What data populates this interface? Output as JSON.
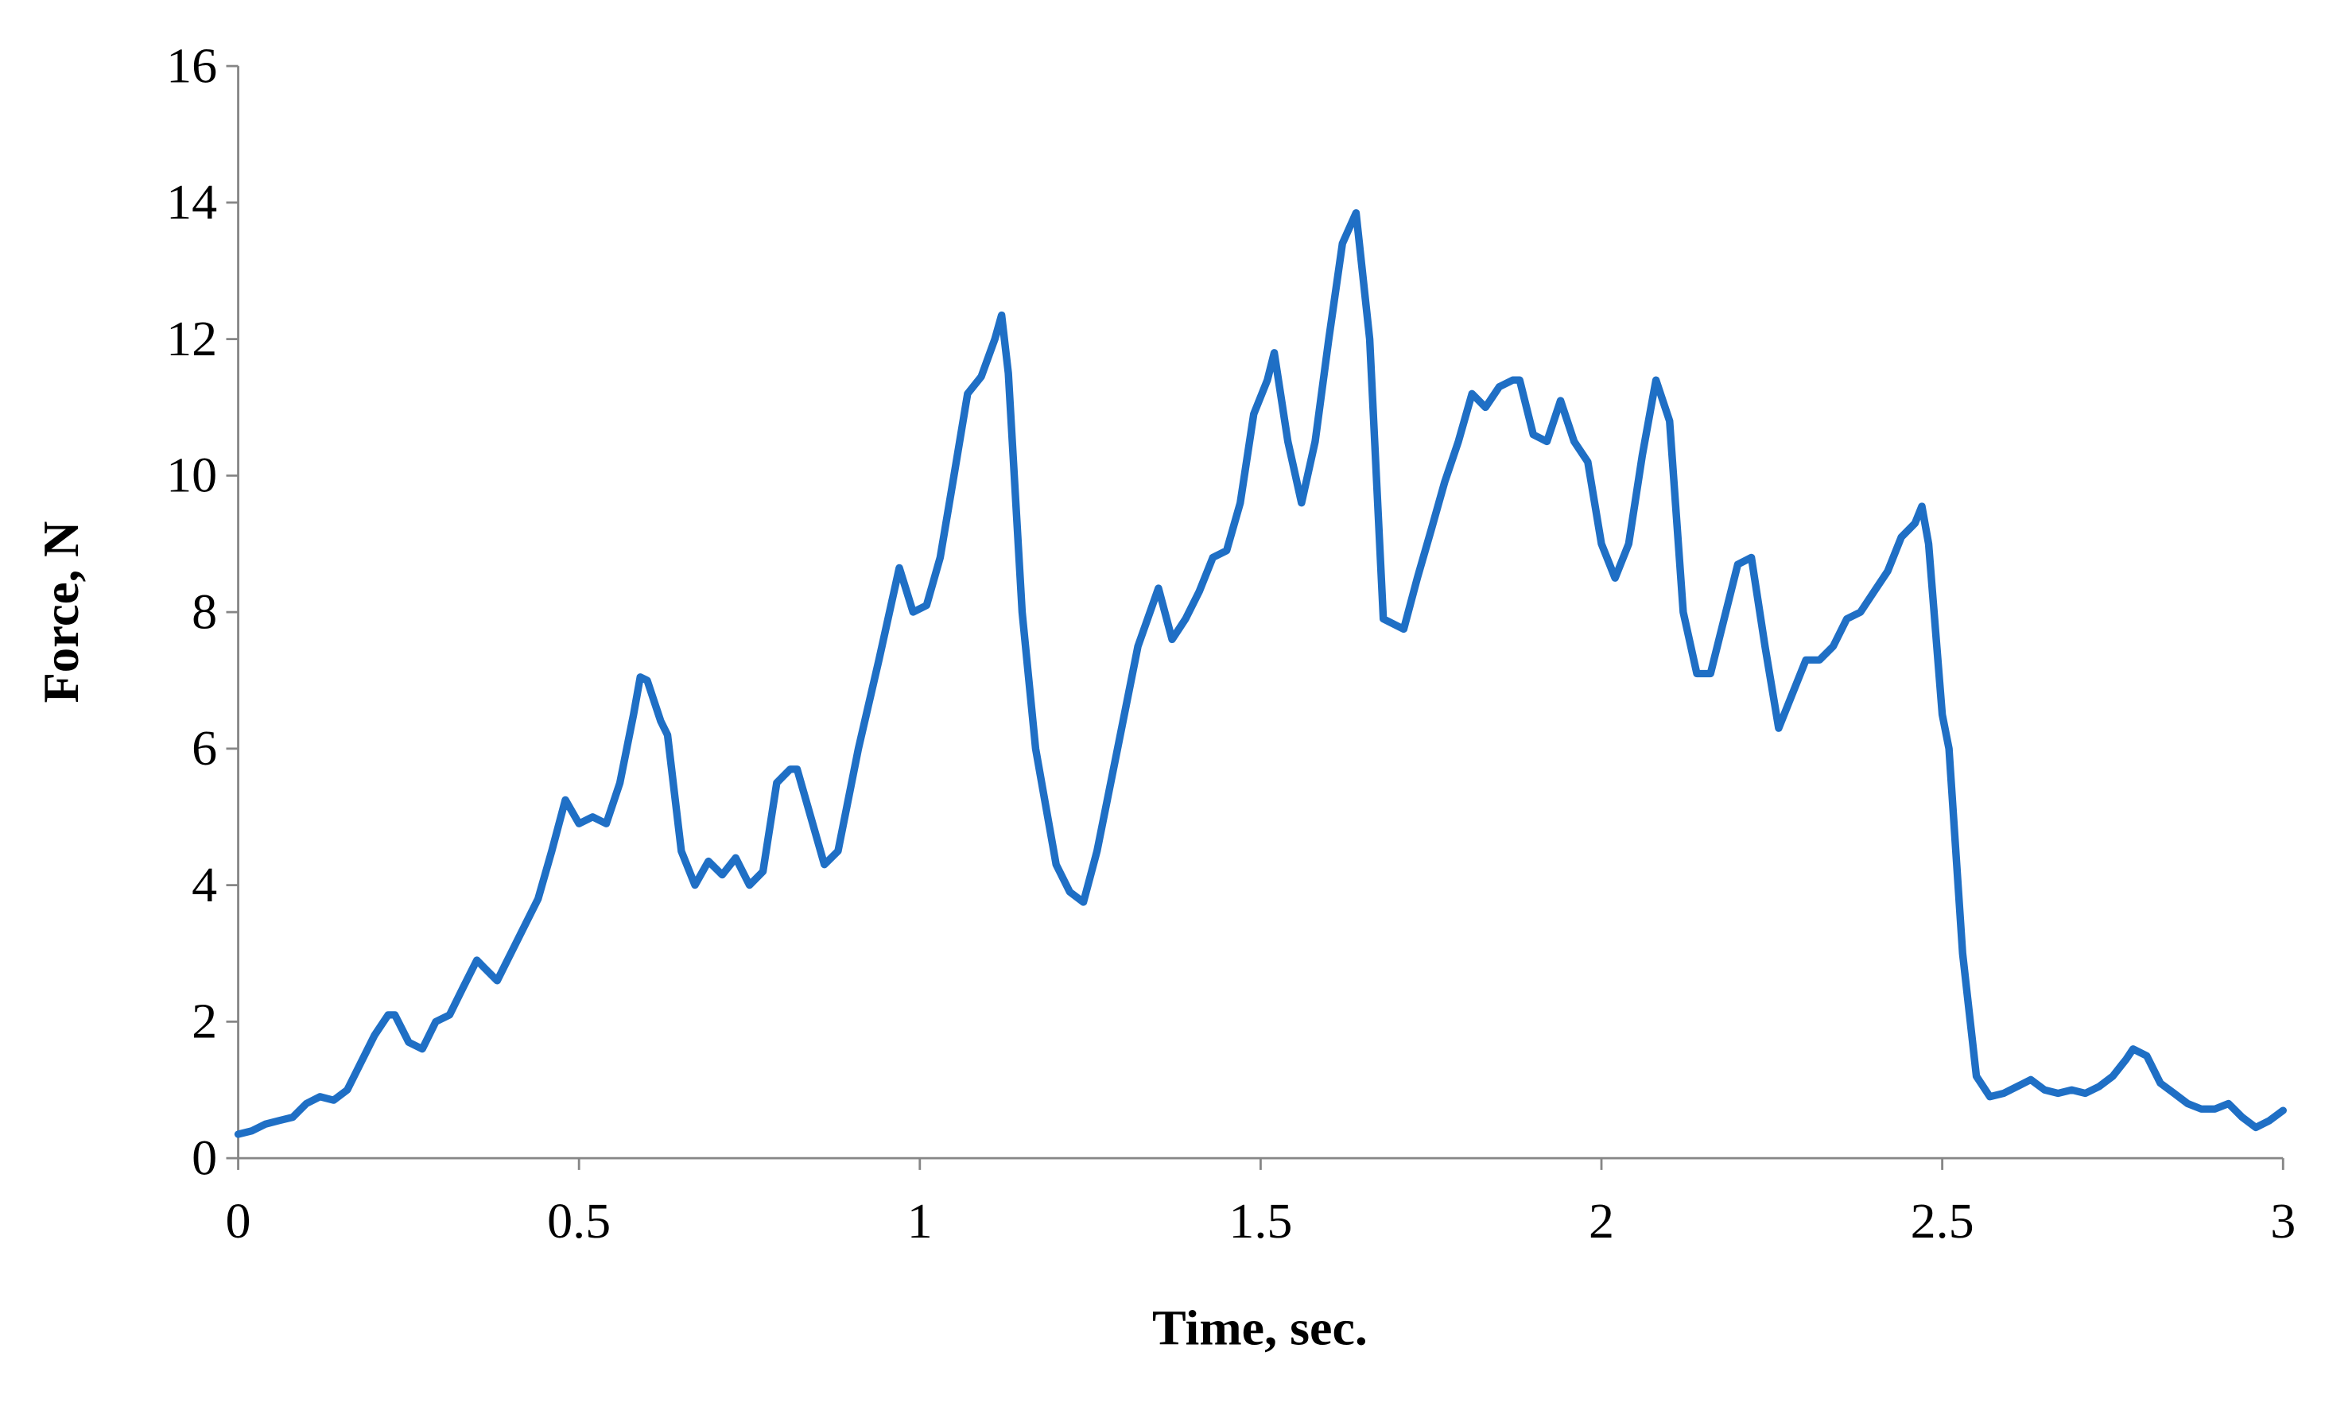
{
  "chart_data": {
    "type": "line",
    "x_label": "Time, sec.",
    "y_label": "Force, N",
    "xlim": [
      0,
      3
    ],
    "xticks": [
      0,
      0.5,
      1,
      1.5,
      2,
      2.5,
      3
    ],
    "ylim": [
      0,
      16
    ],
    "yticks": [
      0,
      2,
      4,
      6,
      8,
      10,
      12,
      14,
      16
    ],
    "grid": false,
    "x": [
      0,
      0.02,
      0.04,
      0.06,
      0.08,
      0.1,
      0.12,
      0.14,
      0.16,
      0.18,
      0.2,
      0.22,
      0.23,
      0.25,
      0.27,
      0.29,
      0.31,
      0.33,
      0.35,
      0.36,
      0.38,
      0.4,
      0.42,
      0.44,
      0.46,
      0.48,
      0.5,
      0.52,
      0.54,
      0.56,
      0.58,
      0.59,
      0.6,
      0.62,
      0.63,
      0.65,
      0.67,
      0.69,
      0.71,
      0.73,
      0.75,
      0.77,
      0.79,
      0.81,
      0.82,
      0.84,
      0.86,
      0.88,
      0.91,
      0.94,
      0.97,
      0.99,
      1.01,
      1.03,
      1.05,
      1.07,
      1.09,
      1.11,
      1.12,
      1.13,
      1.15,
      1.17,
      1.2,
      1.22,
      1.24,
      1.26,
      1.29,
      1.32,
      1.35,
      1.37,
      1.39,
      1.41,
      1.43,
      1.45,
      1.47,
      1.49,
      1.51,
      1.52,
      1.54,
      1.56,
      1.58,
      1.6,
      1.62,
      1.64,
      1.66,
      1.68,
      1.7,
      1.71,
      1.73,
      1.75,
      1.77,
      1.79,
      1.81,
      1.83,
      1.85,
      1.87,
      1.88,
      1.9,
      1.92,
      1.94,
      1.96,
      1.98,
      2.0,
      2.02,
      2.04,
      2.06,
      2.08,
      2.1,
      2.12,
      2.14,
      2.16,
      2.18,
      2.2,
      2.22,
      2.24,
      2.26,
      2.28,
      2.3,
      2.32,
      2.34,
      2.36,
      2.38,
      2.4,
      2.42,
      2.44,
      2.46,
      2.47,
      2.48,
      2.5,
      2.51,
      2.53,
      2.55,
      2.57,
      2.59,
      2.61,
      2.63,
      2.65,
      2.67,
      2.69,
      2.71,
      2.73,
      2.75,
      2.77,
      2.78,
      2.8,
      2.82,
      2.84,
      2.86,
      2.88,
      2.9,
      2.92,
      2.94,
      2.96,
      2.98,
      3.0
    ],
    "series": [
      {
        "color": "#1f6fc5",
        "values": [
          0.35,
          0.4,
          0.5,
          0.55,
          0.6,
          0.8,
          0.9,
          0.85,
          1.0,
          1.4,
          1.8,
          2.1,
          2.1,
          1.7,
          1.6,
          2.0,
          2.1,
          2.5,
          2.9,
          2.8,
          2.6,
          3.0,
          3.4,
          3.8,
          4.5,
          5.25,
          4.9,
          5.0,
          4.9,
          5.5,
          6.5,
          7.05,
          7.0,
          6.4,
          6.2,
          4.5,
          4.0,
          4.35,
          4.15,
          4.4,
          4.0,
          4.2,
          5.5,
          5.7,
          5.7,
          5.0,
          4.3,
          4.5,
          6.0,
          7.3,
          8.65,
          8.0,
          8.1,
          8.8,
          10.0,
          11.2,
          11.45,
          12.0,
          12.35,
          11.5,
          8.0,
          6.0,
          4.3,
          3.9,
          3.75,
          4.5,
          6.0,
          7.5,
          8.35,
          7.6,
          7.9,
          8.3,
          8.8,
          8.9,
          9.6,
          10.9,
          11.4,
          11.8,
          10.5,
          9.6,
          10.5,
          12.0,
          13.4,
          13.85,
          12.0,
          7.9,
          7.8,
          7.75,
          8.5,
          9.2,
          9.9,
          10.5,
          11.2,
          11.0,
          11.3,
          11.4,
          11.4,
          10.6,
          10.5,
          11.1,
          10.5,
          10.2,
          9.0,
          8.5,
          9.0,
          10.3,
          11.4,
          10.8,
          8.0,
          7.1,
          7.1,
          7.9,
          8.7,
          8.8,
          7.5,
          6.3,
          6.8,
          7.3,
          7.3,
          7.5,
          7.9,
          8.0,
          8.3,
          8.6,
          9.1,
          9.3,
          9.55,
          9.0,
          6.5,
          6.0,
          3.0,
          1.2,
          0.9,
          0.95,
          1.05,
          1.15,
          1.0,
          0.95,
          1.0,
          0.95,
          1.05,
          1.2,
          1.45,
          1.6,
          1.5,
          1.1,
          0.95,
          0.8,
          0.72,
          0.72,
          0.8,
          0.6,
          0.45,
          0.55,
          0.7
        ]
      }
    ]
  }
}
